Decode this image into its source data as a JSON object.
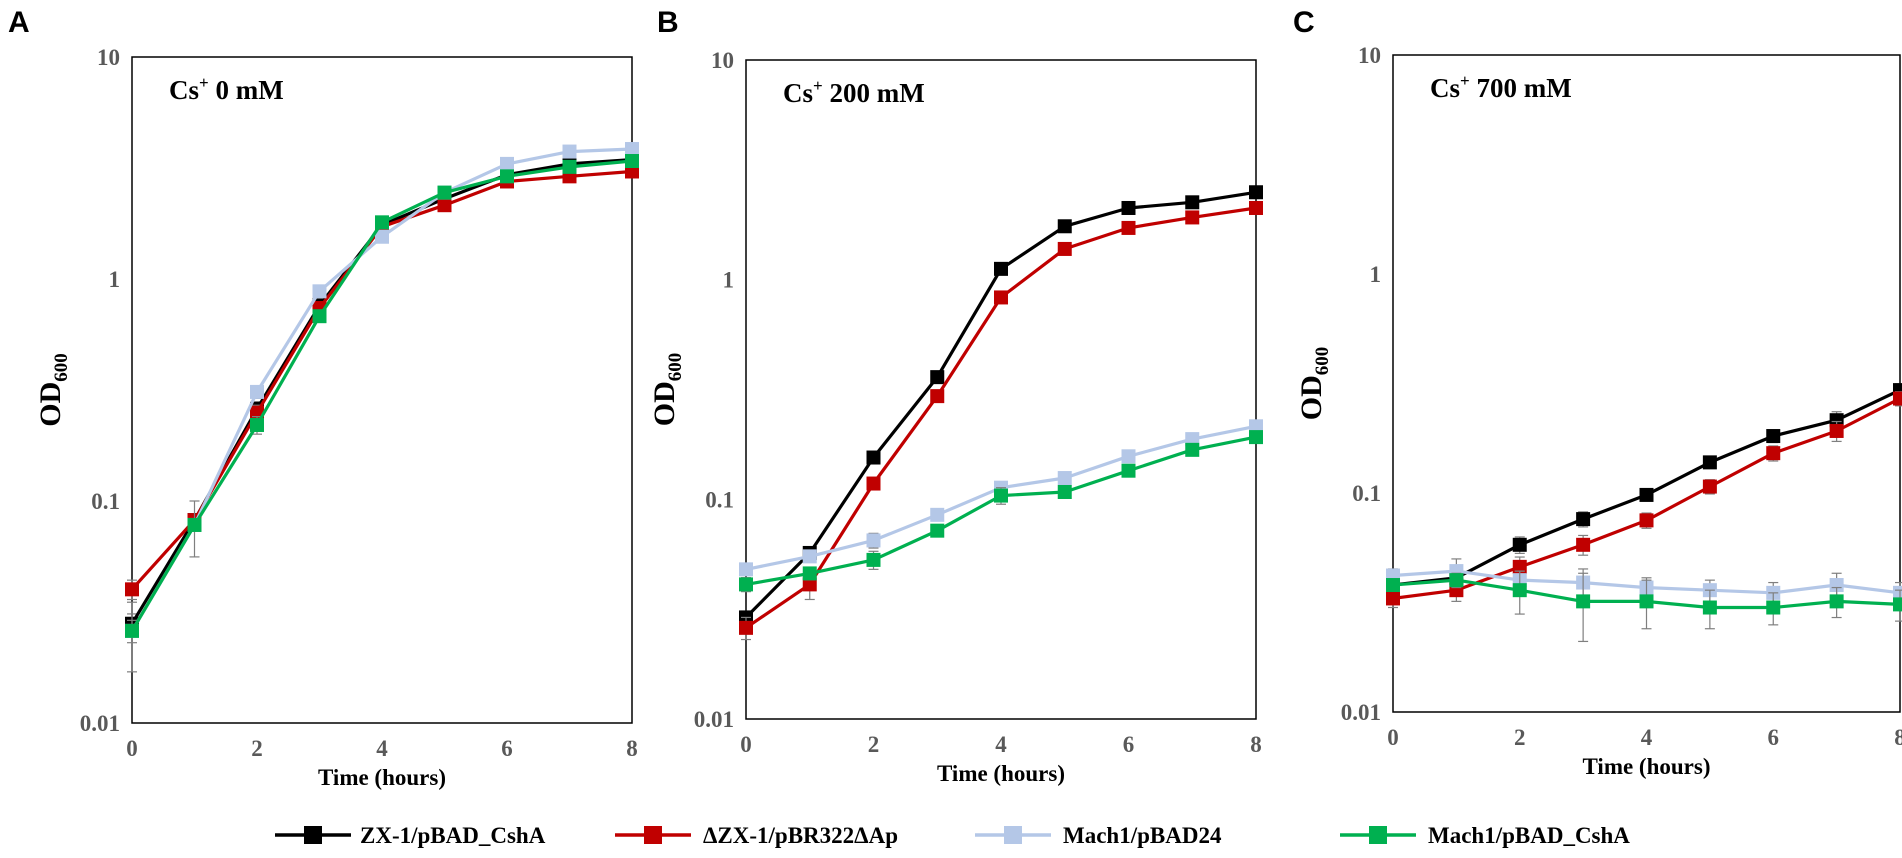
{
  "figure": {
    "legend_position": "bottom-center"
  },
  "chart_data": [
    {
      "type": "line",
      "panel_label": "A",
      "condition": {
        "ion": "Cs",
        "charge": "+",
        "rest": " 0 mM"
      },
      "ylabel": {
        "main": "OD",
        "sub": "600"
      },
      "xlabel": "Time (hours)",
      "yscale": "log",
      "ylim": [
        0.01,
        10
      ],
      "yticks": [
        "0.01",
        "0.1",
        "1",
        "10"
      ],
      "xlim": [
        0,
        8
      ],
      "xticks": [
        "0",
        "2",
        "4",
        "6",
        "8"
      ],
      "x": [
        0,
        1,
        2,
        3,
        4,
        5,
        6,
        7,
        8
      ],
      "series": [
        {
          "name": "ZX-1/pBAD_CshA",
          "values": [
            0.028,
            0.082,
            0.26,
            0.76,
            1.75,
            2.3,
            2.95,
            3.3,
            3.45
          ],
          "errors": [
            0.003,
            0.004,
            0.02,
            0.04,
            0.06,
            0.08,
            0.1,
            0.1,
            0.1
          ]
        },
        {
          "name": "ΔZX-1/pBR322ΔAp",
          "values": [
            0.04,
            0.082,
            0.25,
            0.74,
            1.72,
            2.15,
            2.75,
            2.9,
            3.05
          ],
          "errors": [
            0.004,
            0.005,
            0.02,
            0.04,
            0.06,
            0.08,
            0.1,
            0.1,
            0.1
          ]
        },
        {
          "name": "Mach1/pBAD24",
          "values": [
            0.026,
            0.078,
            0.31,
            0.88,
            1.55,
            2.45,
            3.3,
            3.75,
            3.85
          ],
          "errors": [
            0.003,
            0.004,
            0.02,
            0.04,
            0.06,
            0.08,
            0.1,
            0.1,
            0.1
          ]
        },
        {
          "name": "Mach1/pBAD_CshA",
          "values": [
            0.026,
            0.078,
            0.22,
            0.68,
            1.8,
            2.45,
            2.9,
            3.2,
            3.4
          ],
          "errors": [
            0.009,
            0.022,
            0.02,
            0.04,
            0.06,
            0.08,
            0.1,
            0.1,
            0.1
          ]
        }
      ]
    },
    {
      "type": "line",
      "panel_label": "B",
      "condition": {
        "ion": "Cs",
        "charge": "+",
        "rest": " 200 mM"
      },
      "ylabel": {
        "main": "OD",
        "sub": "600"
      },
      "xlabel": "Time (hours)",
      "yscale": "log",
      "ylim": [
        0.01,
        10
      ],
      "yticks": [
        "0.01",
        "0.1",
        "1",
        "10"
      ],
      "xlim": [
        0,
        8
      ],
      "xticks": [
        "0",
        "2",
        "4",
        "6",
        "8"
      ],
      "x": [
        0,
        1,
        2,
        3,
        4,
        5,
        6,
        7,
        8
      ],
      "series": [
        {
          "name": "ZX-1/pBAD_CshA",
          "values": [
            0.029,
            0.057,
            0.155,
            0.36,
            1.12,
            1.75,
            2.12,
            2.25,
            2.5
          ],
          "errors": [
            0.002,
            0.003,
            0.006,
            0.012,
            0.03,
            0.05,
            0.05,
            0.06,
            0.06
          ]
        },
        {
          "name": "ΔZX-1/pBR322ΔAp",
          "values": [
            0.026,
            0.041,
            0.118,
            0.295,
            0.83,
            1.38,
            1.72,
            1.92,
            2.12
          ],
          "errors": [
            0.003,
            0.006,
            0.006,
            0.012,
            0.03,
            0.05,
            0.05,
            0.06,
            0.06
          ]
        },
        {
          "name": "Mach1/pBAD24",
          "values": [
            0.048,
            0.055,
            0.065,
            0.085,
            0.113,
            0.125,
            0.157,
            0.188,
            0.215
          ],
          "errors": [
            0.003,
            0.003,
            0.005,
            0.004,
            0.005,
            0.005,
            0.006,
            0.007,
            0.008
          ]
        },
        {
          "name": "Mach1/pBAD_CshA",
          "values": [
            0.041,
            0.046,
            0.053,
            0.072,
            0.104,
            0.108,
            0.135,
            0.168,
            0.192
          ],
          "errors": [
            0.003,
            0.003,
            0.005,
            0.004,
            0.009,
            0.005,
            0.006,
            0.007,
            0.008
          ]
        }
      ]
    },
    {
      "type": "line",
      "panel_label": "C",
      "condition": {
        "ion": "Cs",
        "charge": "+",
        "rest": " 700 mM"
      },
      "ylabel": {
        "main": "OD",
        "sub": "600"
      },
      "xlabel": "Time (hours)",
      "yscale": "log",
      "ylim": [
        0.01,
        10
      ],
      "yticks": [
        "0.01",
        "0.1",
        "1",
        "10"
      ],
      "xlim": [
        0,
        8
      ],
      "xticks": [
        "0",
        "2",
        "4",
        "6",
        "8"
      ],
      "x": [
        0,
        1,
        2,
        3,
        4,
        5,
        6,
        7,
        8
      ],
      "series": [
        {
          "name": "ZX-1/pBAD_CshA",
          "values": [
            0.038,
            0.041,
            0.058,
            0.076,
            0.098,
            0.138,
            0.182,
            0.215,
            0.295
          ],
          "errors": [
            0.003,
            0.004,
            0.005,
            0.006,
            0.006,
            0.008,
            0.012,
            0.02,
            0.02
          ]
        },
        {
          "name": "ΔZX-1/pBR322ΔAp",
          "values": [
            0.033,
            0.036,
            0.046,
            0.058,
            0.075,
            0.107,
            0.152,
            0.192,
            0.27
          ],
          "errors": [
            0.003,
            0.004,
            0.005,
            0.006,
            0.006,
            0.008,
            0.012,
            0.02,
            0.02
          ]
        },
        {
          "name": "Mach1/pBAD24",
          "values": [
            0.042,
            0.044,
            0.04,
            0.039,
            0.037,
            0.036,
            0.035,
            0.038,
            0.035
          ],
          "errors": [
            0.003,
            0.006,
            0.004,
            0.006,
            0.004,
            0.004,
            0.004,
            0.005,
            0.004
          ]
        },
        {
          "name": "Mach1/pBAD_CshA",
          "values": [
            0.038,
            0.04,
            0.036,
            0.032,
            0.032,
            0.03,
            0.03,
            0.032,
            0.031
          ],
          "errors": [
            0.002,
            0.003,
            0.008,
            0.011,
            0.008,
            0.006,
            0.005,
            0.005,
            0.005
          ]
        }
      ]
    }
  ],
  "legend": {
    "items": [
      {
        "label": "ZX-1/pBAD_CshA",
        "line_color": "#000000",
        "marker_color": "#000000"
      },
      {
        "label": "ΔZX-1/pBR322ΔAp",
        "line_color": "#c00000",
        "marker_color": "#c00000"
      },
      {
        "label": "Mach1/pBAD24",
        "line_color": "#b4c7e7",
        "marker_color": "#b4c7e7"
      },
      {
        "label": "Mach1/pBAD_CshA",
        "line_color": "#00b050",
        "marker_color": "#00b050"
      }
    ]
  },
  "colors": {
    "series": [
      "#000000",
      "#c00000",
      "#b4c7e7",
      "#00b050"
    ],
    "tick_text": "#595959",
    "error_bar": "#7f7f7f"
  }
}
